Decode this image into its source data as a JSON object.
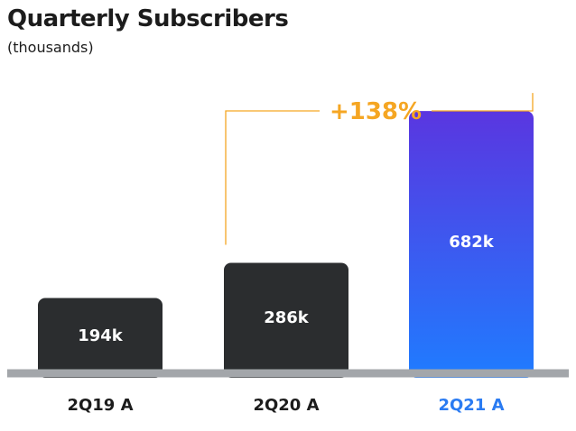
{
  "title": "Quarterly Subscribers",
  "subtitle": "(thousands)",
  "colors": {
    "bar_dark": "#2b2d2f",
    "gradient_top": "#5a36e0",
    "gradient_bottom": "#1f7cff",
    "highlight_label": "#2a7bf2",
    "bracket": "#f5a623",
    "baseline": "#a3a6aa",
    "text": "#1c1c1c"
  },
  "chart_data": {
    "type": "bar",
    "title": "Quarterly Subscribers",
    "subtitle": "(thousands)",
    "categories": [
      "2Q19 A",
      "2Q20 A",
      "2Q21 A"
    ],
    "values": [
      194,
      286,
      682
    ],
    "value_labels": [
      "194k",
      "286k",
      "682k"
    ],
    "highlight_index": 2,
    "ylim": [
      0,
      800
    ],
    "grid": false,
    "annotation": {
      "text": "+138%",
      "from_index": 1,
      "to_index": 2
    }
  }
}
